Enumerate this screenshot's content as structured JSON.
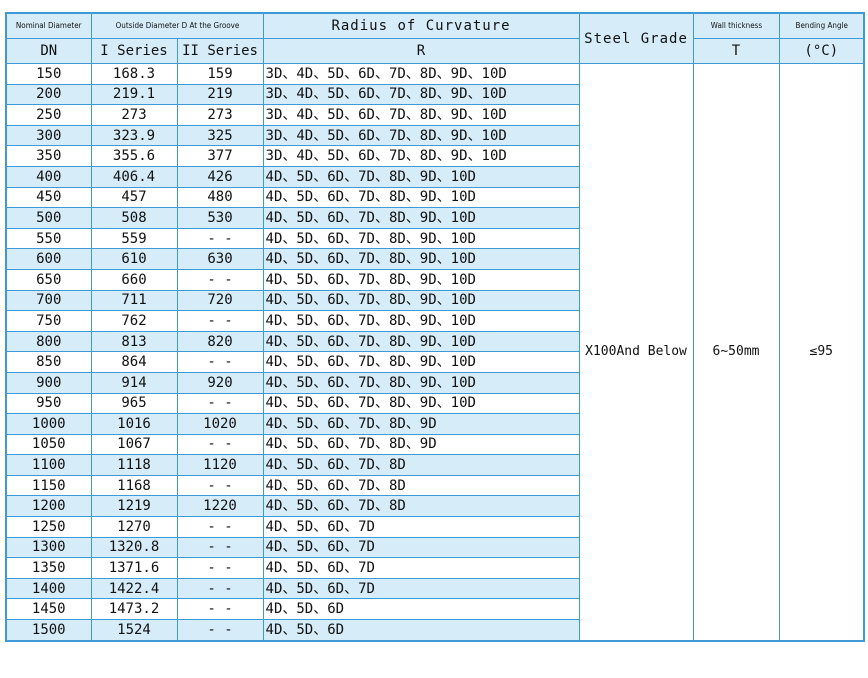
{
  "header": {
    "nominal_diameter": "Nominal Diameter",
    "outside_diameter": "Outside Diameter D At the Groove",
    "radius": "Radius of Curvature",
    "steel_grade": "Steel Grade",
    "wall_thickness": "Wall thickness",
    "bending_angle": "Bending Angle",
    "dn": "DN",
    "series_1": "I Series",
    "series_2": "II Series",
    "r": "R",
    "t": "T",
    "angle_unit": "(°C)"
  },
  "merged": {
    "steel_grade": "X100And Below",
    "wall_thickness": "6~50mm",
    "bending_angle": "≤95"
  },
  "table": {
    "rows": [
      [
        "150",
        "168.3",
        "159",
        "3D、4D、5D、6D、7D、8D、9D、10D"
      ],
      [
        "200",
        "219.1",
        "219",
        "3D、4D、5D、6D、7D、8D、9D、10D"
      ],
      [
        "250",
        "273",
        "273",
        "3D、4D、5D、6D、7D、8D、9D、10D"
      ],
      [
        "300",
        "323.9",
        "325",
        "3D、4D、5D、6D、7D、8D、9D、10D"
      ],
      [
        "350",
        "355.6",
        "377",
        "3D、4D、5D、6D、7D、8D、9D、10D"
      ],
      [
        "400",
        "406.4",
        "426",
        "4D、5D、6D、7D、8D、9D、10D"
      ],
      [
        "450",
        "457",
        "480",
        "4D、5D、6D、7D、8D、9D、10D"
      ],
      [
        "500",
        "508",
        "530",
        "4D、5D、6D、7D、8D、9D、10D"
      ],
      [
        "550",
        "559",
        "- -",
        "4D、5D、6D、7D、8D、9D、10D"
      ],
      [
        "600",
        "610",
        "630",
        "4D、5D、6D、7D、8D、9D、10D"
      ],
      [
        "650",
        "660",
        "- -",
        "4D、5D、6D、7D、8D、9D、10D"
      ],
      [
        "700",
        "711",
        "720",
        "4D、5D、6D、7D、8D、9D、10D"
      ],
      [
        "750",
        "762",
        "- -",
        "4D、5D、6D、7D、8D、9D、10D"
      ],
      [
        "800",
        "813",
        "820",
        "4D、5D、6D、7D、8D、9D、10D"
      ],
      [
        "850",
        "864",
        "- -",
        "4D、5D、6D、7D、8D、9D、10D"
      ],
      [
        "900",
        "914",
        "920",
        "4D、5D、6D、7D、8D、9D、10D"
      ],
      [
        "950",
        "965",
        "- -",
        "4D、5D、6D、7D、8D、9D、10D"
      ],
      [
        "1000",
        "1016",
        "1020",
        "4D、5D、6D、7D、8D、9D"
      ],
      [
        "1050",
        "1067",
        "- -",
        "4D、5D、6D、7D、8D、9D"
      ],
      [
        "1100",
        "1118",
        "1120",
        "4D、5D、6D、7D、8D"
      ],
      [
        "1150",
        "1168",
        "- -",
        "4D、5D、6D、7D、8D"
      ],
      [
        "1200",
        "1219",
        "1220",
        "4D、5D、6D、7D、8D"
      ],
      [
        "1250",
        "1270",
        "- -",
        "4D、5D、6D、7D"
      ],
      [
        "1300",
        "1320.8",
        "- -",
        "4D、5D、6D、7D"
      ],
      [
        "1350",
        "1371.6",
        "- -",
        "4D、5D、6D、7D"
      ],
      [
        "1400",
        "1422.4",
        "- -",
        "4D、5D、6D、7D"
      ],
      [
        "1450",
        "1473.2",
        "- -",
        "4D、5D、6D"
      ],
      [
        "1500",
        "1524",
        "- -",
        "4D、5D、6D"
      ]
    ]
  }
}
